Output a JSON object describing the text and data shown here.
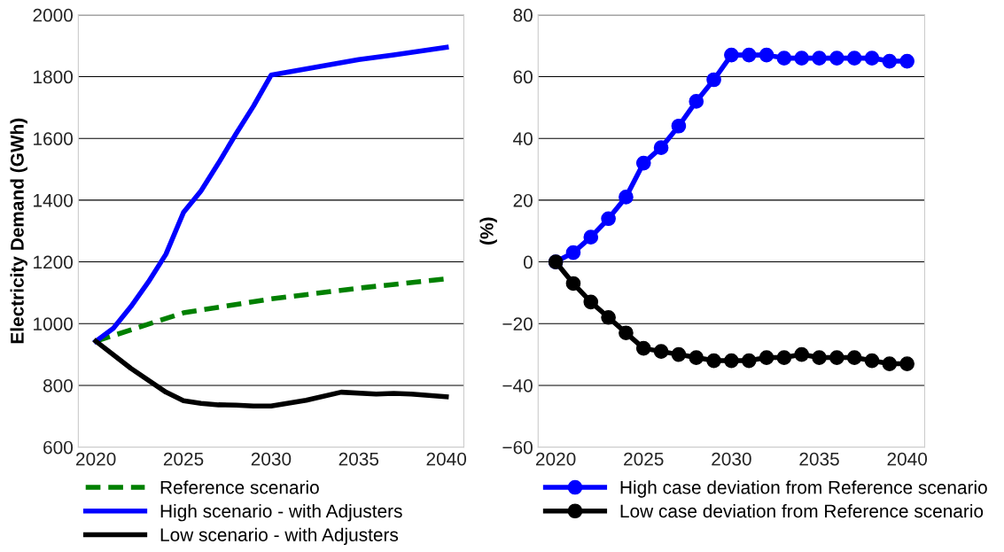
{
  "chart_data": [
    {
      "type": "line",
      "ylabel": "Electricity Demand (GWh)",
      "xlim": [
        2019,
        2041
      ],
      "xticks": [
        2020,
        2025,
        2030,
        2035,
        2040
      ],
      "ylim": [
        600,
        2000
      ],
      "yticks": [
        600,
        800,
        1000,
        1200,
        1400,
        1600,
        1800,
        2000
      ],
      "grid": "y",
      "legend": "bottom",
      "marker": "none",
      "series": [
        {
          "name": "Reference scenario",
          "color": "#008000",
          "line_style": "dashed",
          "x": [
            2020,
            2025,
            2030,
            2035,
            2040
          ],
          "values": [
            943,
            1035,
            1080,
            1115,
            1145
          ]
        },
        {
          "name": "High scenario - with Adjusters",
          "color": "#0000ff",
          "line_style": "solid",
          "x": [
            2020,
            2021,
            2022,
            2023,
            2024,
            2025,
            2026,
            2027,
            2028,
            2029,
            2030,
            2033,
            2035,
            2037,
            2040
          ],
          "values": [
            943,
            985,
            1055,
            1135,
            1225,
            1360,
            1430,
            1520,
            1615,
            1705,
            1805,
            1835,
            1855,
            1870,
            1895
          ]
        },
        {
          "name": "Low scenario - with Adjusters",
          "color": "#000000",
          "line_style": "solid",
          "x": [
            2020,
            2022,
            2024,
            2025,
            2026,
            2027,
            2028,
            2029,
            2030,
            2032,
            2034,
            2036,
            2037,
            2038,
            2040
          ],
          "values": [
            943,
            855,
            778,
            750,
            742,
            737,
            736,
            733,
            733,
            752,
            778,
            772,
            774,
            772,
            763
          ]
        }
      ]
    },
    {
      "type": "line",
      "ylabel": "(%)",
      "xlim": [
        2019,
        2041
      ],
      "xticks": [
        2020,
        2025,
        2030,
        2035,
        2040
      ],
      "ylim": [
        -60,
        80
      ],
      "yticks": [
        -60,
        -40,
        -20,
        0,
        20,
        40,
        60,
        80
      ],
      "grid": "y",
      "legend": "bottom",
      "marker": "circle",
      "x": [
        2020,
        2021,
        2022,
        2023,
        2024,
        2025,
        2026,
        2027,
        2028,
        2029,
        2030,
        2031,
        2032,
        2033,
        2034,
        2035,
        2036,
        2037,
        2038,
        2039,
        2040
      ],
      "series": [
        {
          "name": "High case deviation from Reference scenario",
          "color": "#0000ff",
          "values": [
            0,
            3,
            8,
            14,
            21,
            32,
            37,
            44,
            52,
            59,
            67,
            67,
            67,
            66,
            66,
            66,
            66,
            66,
            66,
            65,
            65
          ]
        },
        {
          "name": "Low case deviation from Reference scenario",
          "color": "#000000",
          "values": [
            0,
            -7,
            -13,
            -18,
            -23,
            -28,
            -29,
            -30,
            -31,
            -32,
            -32,
            -32,
            -31,
            -31,
            -30,
            -31,
            -31,
            -31,
            -32,
            -33,
            -33
          ]
        }
      ]
    }
  ]
}
